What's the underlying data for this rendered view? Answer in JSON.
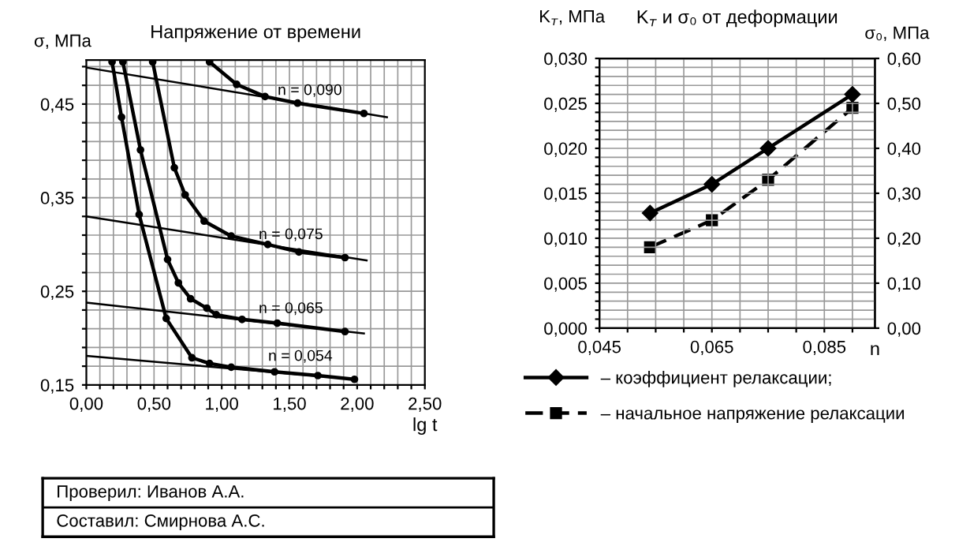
{
  "chart_data": [
    {
      "type": "line",
      "title": "Напряжение от времени",
      "xlabel": "lg t",
      "ylabel": "σ, МПа",
      "xlim": [
        0,
        2.5
      ],
      "ylim": [
        0.15,
        0.497
      ],
      "xticks": [
        {
          "value": 0,
          "label": "0,00"
        },
        {
          "value": 0.1,
          "label": null
        },
        {
          "value": 0.2,
          "label": null
        },
        {
          "value": 0.3,
          "label": null
        },
        {
          "value": 0.4,
          "label": null
        },
        {
          "value": 0.5,
          "label": "0,50"
        },
        {
          "value": 0.6,
          "label": null
        },
        {
          "value": 0.7,
          "label": null
        },
        {
          "value": 0.8,
          "label": null
        },
        {
          "value": 0.9,
          "label": null
        },
        {
          "value": 1.0,
          "label": "1,00"
        },
        {
          "value": 1.1,
          "label": null
        },
        {
          "value": 1.2,
          "label": null
        },
        {
          "value": 1.3,
          "label": null
        },
        {
          "value": 1.4,
          "label": null
        },
        {
          "value": 1.5,
          "label": "1,50"
        },
        {
          "value": 1.6,
          "label": null
        },
        {
          "value": 1.7,
          "label": null
        },
        {
          "value": 1.8,
          "label": null
        },
        {
          "value": 1.9,
          "label": null
        },
        {
          "value": 2.0,
          "label": "2,00"
        },
        {
          "value": 2.1,
          "label": null
        },
        {
          "value": 2.2,
          "label": null
        },
        {
          "value": 2.3,
          "label": null
        },
        {
          "value": 2.4,
          "label": null
        },
        {
          "value": 2.5,
          "label": "2,50"
        }
      ],
      "yticks": [
        {
          "value": 0.15,
          "label": "0,15"
        },
        {
          "value": 0.17,
          "label": null
        },
        {
          "value": 0.19,
          "label": null
        },
        {
          "value": 0.21,
          "label": null
        },
        {
          "value": 0.23,
          "label": null
        },
        {
          "value": 0.25,
          "label": "0,25"
        },
        {
          "value": 0.27,
          "label": null
        },
        {
          "value": 0.29,
          "label": null
        },
        {
          "value": 0.31,
          "label": null
        },
        {
          "value": 0.33,
          "label": null
        },
        {
          "value": 0.35,
          "label": "0,35"
        },
        {
          "value": 0.37,
          "label": null
        },
        {
          "value": 0.39,
          "label": null
        },
        {
          "value": 0.41,
          "label": null
        },
        {
          "value": 0.43,
          "label": null
        },
        {
          "value": 0.45,
          "label": "0,45"
        },
        {
          "value": 0.47,
          "label": null
        },
        {
          "value": 0.49,
          "label": null
        }
      ],
      "grid": true,
      "series": [
        {
          "name": "n = 0,054",
          "color": "#000000",
          "marker": "circle",
          "x": [
            0.19,
            0.26,
            0.39,
            0.59,
            0.78,
            0.91,
            1.07,
            1.39,
            1.71,
            1.98
          ],
          "values": [
            0.495,
            0.436,
            0.332,
            0.221,
            0.179,
            0.173,
            0.169,
            0.164,
            0.16,
            0.156
          ]
        },
        {
          "name": "n = 0,065",
          "color": "#000000",
          "marker": "circle",
          "x": [
            0.27,
            0.4,
            0.6,
            0.68,
            0.77,
            0.89,
            0.96,
            1.15,
            1.41,
            1.91
          ],
          "values": [
            0.495,
            0.401,
            0.284,
            0.259,
            0.242,
            0.232,
            0.225,
            0.22,
            0.216,
            0.207
          ]
        },
        {
          "name": "n = 0,075",
          "color": "#000000",
          "marker": "circle",
          "x": [
            0.49,
            0.65,
            0.73,
            0.87,
            1.07,
            1.34,
            1.57,
            1.91
          ],
          "values": [
            0.495,
            0.382,
            0.353,
            0.325,
            0.309,
            0.3,
            0.292,
            0.286
          ]
        },
        {
          "name": "n = 0,090",
          "color": "#000000",
          "marker": "circle",
          "x": [
            0.91,
            1.11,
            1.32,
            1.56,
            2.05
          ],
          "values": [
            0.495,
            0.471,
            0.458,
            0.451,
            0.44
          ]
        },
        {
          "color": "#000000",
          "marker": "none",
          "x": [
            0,
            2.22
          ],
          "values": [
            0.489,
            0.436
          ]
        },
        {
          "color": "#000000",
          "marker": "none",
          "x": [
            0,
            2.07
          ],
          "values": [
            0.33,
            0.283
          ]
        },
        {
          "color": "#000000",
          "marker": "none",
          "x": [
            0,
            2.05
          ],
          "values": [
            0.238,
            0.205
          ]
        },
        {
          "color": "#000000",
          "marker": "none",
          "x": [
            0,
            1.98
          ],
          "values": [
            0.181,
            0.156
          ]
        }
      ]
    },
    {
      "type": "line",
      "title": "K$_{т}$ и σ₀ от деформации",
      "xlabel": "n",
      "ylabel": "K$_{т}$, МПа",
      "y2label": "σ₀, МПа",
      "xlim": [
        0.045,
        0.094
      ],
      "ylim": [
        0,
        0.03
      ],
      "y2lim": [
        0,
        0.6
      ],
      "xticks": [
        {
          "value": 0.045,
          "label": "0,045"
        },
        {
          "value": 0.05,
          "label": null
        },
        {
          "value": 0.055,
          "label": null
        },
        {
          "value": 0.06,
          "label": null
        },
        {
          "value": 0.065,
          "label": "0,065"
        },
        {
          "value": 0.07,
          "label": null
        },
        {
          "value": 0.075,
          "label": null
        },
        {
          "value": 0.08,
          "label": null
        },
        {
          "value": 0.085,
          "label": "0,085"
        },
        {
          "value": 0.09,
          "label": null
        }
      ],
      "yticks": [
        {
          "value": 0,
          "label": "0,000"
        },
        {
          "value": 0.001,
          "label": null
        },
        {
          "value": 0.002,
          "label": null
        },
        {
          "value": 0.003,
          "label": null
        },
        {
          "value": 0.004,
          "label": null
        },
        {
          "value": 0.005,
          "label": "0,005"
        },
        {
          "value": 0.006,
          "label": null
        },
        {
          "value": 0.007,
          "label": null
        },
        {
          "value": 0.008,
          "label": null
        },
        {
          "value": 0.009,
          "label": null
        },
        {
          "value": 0.01,
          "label": "0,010"
        },
        {
          "value": 0.011,
          "label": null
        },
        {
          "value": 0.012,
          "label": null
        },
        {
          "value": 0.013,
          "label": null
        },
        {
          "value": 0.014,
          "label": null
        },
        {
          "value": 0.015,
          "label": "0,015"
        },
        {
          "value": 0.016,
          "label": null
        },
        {
          "value": 0.017,
          "label": null
        },
        {
          "value": 0.018,
          "label": null
        },
        {
          "value": 0.019,
          "label": null
        },
        {
          "value": 0.02,
          "label": "0,020"
        },
        {
          "value": 0.021,
          "label": null
        },
        {
          "value": 0.022,
          "label": null
        },
        {
          "value": 0.023,
          "label": null
        },
        {
          "value": 0.024,
          "label": null
        },
        {
          "value": 0.025,
          "label": "0,025"
        },
        {
          "value": 0.026,
          "label": null
        },
        {
          "value": 0.027,
          "label": null
        },
        {
          "value": 0.028,
          "label": null
        },
        {
          "value": 0.029,
          "label": null
        },
        {
          "value": 0.03,
          "label": "0,030"
        }
      ],
      "y2ticks": [
        {
          "value": 0,
          "label": "0,00"
        },
        {
          "value": 0.1,
          "label": "0,10"
        },
        {
          "value": 0.2,
          "label": "0,20"
        },
        {
          "value": 0.3,
          "label": "0,30"
        },
        {
          "value": 0.4,
          "label": "0,40"
        },
        {
          "value": 0.5,
          "label": "0,50"
        },
        {
          "value": 0.6,
          "label": "0,60"
        }
      ],
      "grid": true,
      "legend": "bottom",
      "series": [
        {
          "name": "– коэффициент релаксации;",
          "color": "#000000",
          "marker": "diamond",
          "line_style": "solid",
          "x": [
            0.054,
            0.065,
            0.075,
            0.09
          ],
          "values": [
            0.0128,
            0.016,
            0.02,
            0.026
          ]
        },
        {
          "name": "– начальное напряжение релаксации",
          "color": "#000000",
          "marker": "square",
          "line_style": "dashed",
          "axis": "y2",
          "x": [
            0.054,
            0.065,
            0.075,
            0.09
          ],
          "values": [
            0.18,
            0.24,
            0.33,
            0.49
          ]
        }
      ]
    },
    {
      "type": "other",
      "annotations": [
        "Проверил: Иванов А.А.",
        "Составил: Смирнова А.С."
      ]
    }
  ]
}
